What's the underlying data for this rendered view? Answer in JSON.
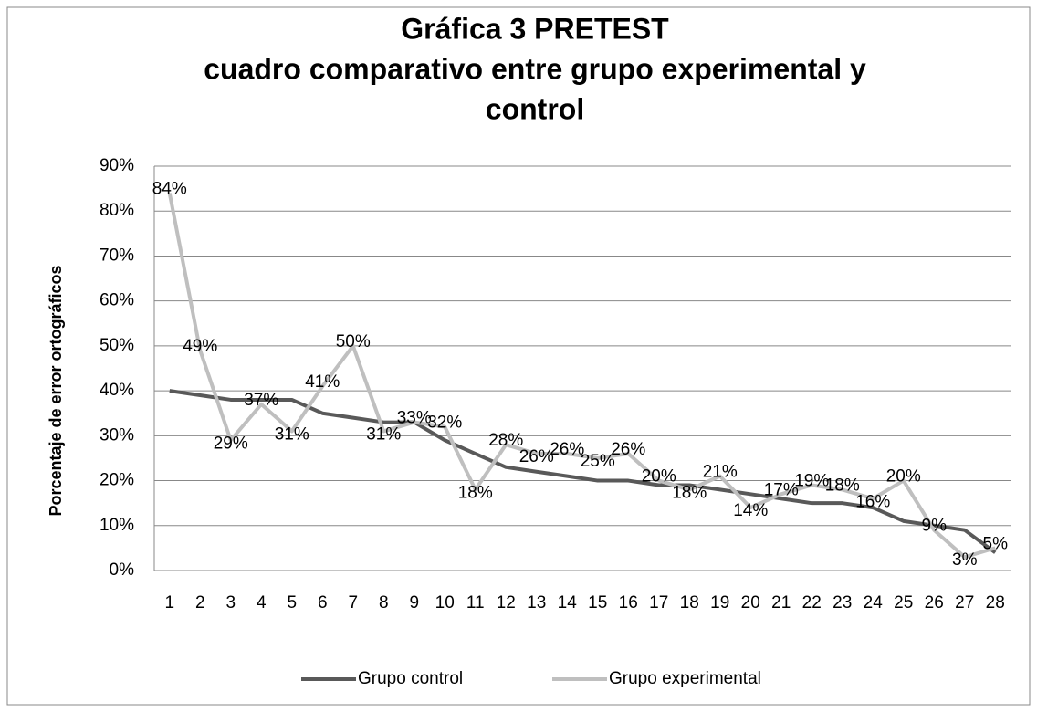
{
  "chart_data": {
    "type": "line",
    "title": [
      "Gráfica 3  PRETEST",
      "cuadro comparativo entre grupo experimental y",
      "control"
    ],
    "y_label": "Porcentaje de error ortográficos",
    "categories": [
      "1",
      "2",
      "3",
      "4",
      "5",
      "6",
      "7",
      "8",
      "9",
      "10",
      "11",
      "12",
      "13",
      "14",
      "15",
      "16",
      "17",
      "18",
      "19",
      "20",
      "21",
      "22",
      "23",
      "24",
      "25",
      "26",
      "27",
      "28"
    ],
    "series": [
      {
        "name": "Grupo control",
        "color": "#595959",
        "values": [
          40,
          39,
          38,
          38,
          38,
          35,
          34,
          33,
          33,
          29,
          26,
          23,
          22,
          21,
          20,
          20,
          19,
          19,
          18,
          17,
          16,
          15,
          15,
          14,
          11,
          10,
          9,
          4
        ]
      },
      {
        "name": "Grupo experimental",
        "color": "#bfbfbf",
        "values": [
          84,
          49,
          29,
          37,
          31,
          41,
          50,
          31,
          33,
          32,
          18,
          28,
          26,
          26,
          25,
          26,
          20,
          18,
          21,
          14,
          17,
          19,
          18,
          16,
          20,
          9,
          3,
          5
        ],
        "value_labels": [
          "84%",
          "49%",
          "29%",
          "37%",
          "31%",
          "41%",
          "50%",
          "31%",
          "33%",
          "32%",
          "18%",
          "28%",
          "26%",
          "26%",
          "25%",
          "26%",
          "20%",
          "18%",
          "21%",
          "14%",
          "17%",
          "19%",
          "18%",
          "16%",
          "20%",
          "9%",
          "3%",
          "5%"
        ]
      }
    ],
    "ylim": [
      0,
      90
    ],
    "yticks": [
      {
        "value": 0,
        "label": "0%"
      },
      {
        "value": 10,
        "label": "10%"
      },
      {
        "value": 20,
        "label": "20%"
      },
      {
        "value": 30,
        "label": "30%"
      },
      {
        "value": 40,
        "label": "40%"
      },
      {
        "value": 50,
        "label": "50%"
      },
      {
        "value": 60,
        "label": "60%"
      },
      {
        "value": 70,
        "label": "70%"
      },
      {
        "value": 80,
        "label": "80%"
      },
      {
        "value": 90,
        "label": "90%"
      }
    ],
    "grid": true,
    "legend": "bottom"
  }
}
